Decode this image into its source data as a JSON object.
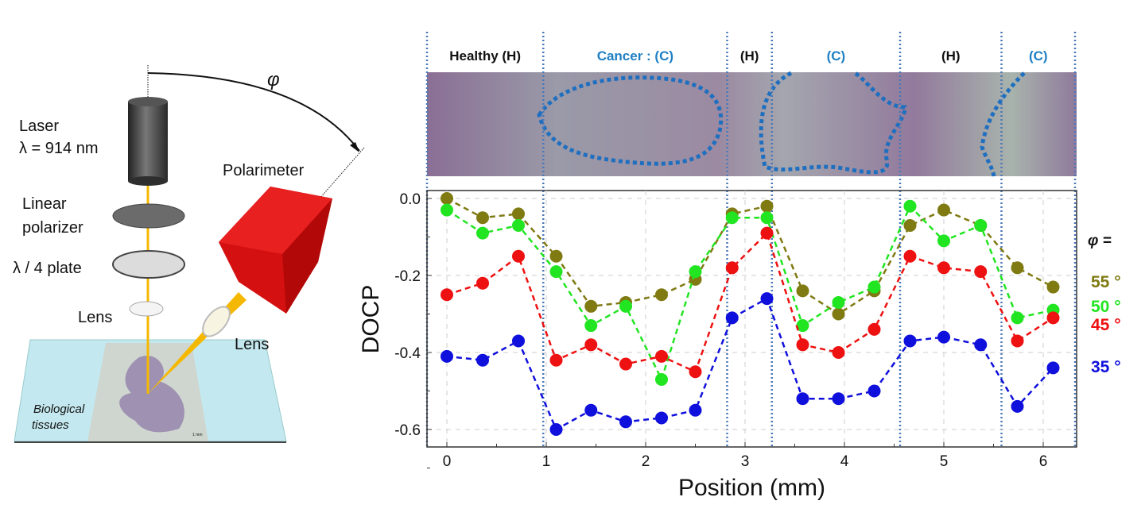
{
  "diagram": {
    "laser_label": "Laser",
    "wavelength_label": "λ = 914 nm",
    "polarizer_label_1": "Linear",
    "polarizer_label_2": "polarizer",
    "plate_label": "λ / 4 plate",
    "lens_label_1": "Lens",
    "lens_label_2": "Lens",
    "polarimeter_label": "Polarimeter",
    "angle_label": "φ",
    "tissue_label_1": "Biological",
    "tissue_label_2": "tissues",
    "scale_label": "1 mm",
    "colors": {
      "laser_body": "#3a3a3a",
      "beam": "#f5b800",
      "polarimeter": "#d81010",
      "slide": "#bfe6ee"
    }
  },
  "regions": [
    {
      "label": "Healthy (H)",
      "type": "healthy",
      "from_mm": -0.2,
      "to_mm": 0.97
    },
    {
      "label": "Cancer : (C)",
      "type": "cancer",
      "from_mm": 0.97,
      "to_mm": 2.82
    },
    {
      "label": "(H)",
      "type": "healthy",
      "from_mm": 2.82,
      "to_mm": 3.27
    },
    {
      "label": "(C)",
      "type": "cancer",
      "from_mm": 3.27,
      "to_mm": 4.56
    },
    {
      "label": "(H)",
      "type": "healthy",
      "from_mm": 4.56,
      "to_mm": 5.58
    },
    {
      "label": "(C)",
      "type": "cancer",
      "from_mm": 5.58,
      "to_mm": 6.33
    }
  ],
  "region_colors": {
    "healthy": "#111111",
    "cancer": "#1f7fc4",
    "divider": "#4a78b8"
  },
  "chart_data": {
    "type": "line",
    "xlabel": "Position (mm)",
    "ylabel": "DOCP",
    "xlim": [
      -0.2,
      6.33
    ],
    "ylim": [
      -0.65,
      0.02
    ],
    "xticks": [
      0,
      1,
      2,
      3,
      4,
      5,
      6
    ],
    "yticks": [
      0.0,
      -0.2,
      -0.4,
      -0.6
    ],
    "ytick_labels": [
      "0.0",
      "-0.2",
      "-0.4",
      "-0.6"
    ],
    "grid": true,
    "legend_title": "φ =",
    "legend_position": "right",
    "x": [
      0,
      0.36,
      0.72,
      1.1,
      1.45,
      1.8,
      2.16,
      2.5,
      2.87,
      3.22,
      3.58,
      3.94,
      4.3,
      4.66,
      5.0,
      5.37,
      5.74,
      6.1
    ],
    "series": [
      {
        "name": "55 °",
        "color": "#7f7a12",
        "values": [
          0.0,
          -0.05,
          -0.04,
          -0.15,
          -0.28,
          -0.27,
          -0.25,
          -0.21,
          -0.04,
          -0.02,
          -0.24,
          -0.3,
          -0.24,
          -0.07,
          -0.03,
          -0.07,
          -0.18,
          -0.23
        ]
      },
      {
        "name": "50 °",
        "color": "#22e522",
        "values": [
          -0.03,
          -0.09,
          -0.07,
          -0.19,
          -0.33,
          -0.28,
          -0.47,
          -0.19,
          -0.05,
          -0.05,
          -0.33,
          -0.27,
          -0.23,
          -0.02,
          -0.11,
          -0.07,
          -0.31,
          -0.29
        ]
      },
      {
        "name": "45 °",
        "color": "#ee1111",
        "values": [
          -0.25,
          -0.22,
          -0.15,
          -0.42,
          -0.38,
          -0.43,
          -0.41,
          -0.45,
          -0.18,
          -0.09,
          -0.38,
          -0.4,
          -0.34,
          -0.15,
          -0.18,
          -0.19,
          -0.37,
          -0.31
        ]
      },
      {
        "name": "35 °",
        "color": "#1010dd",
        "values": [
          -0.41,
          -0.42,
          -0.37,
          -0.6,
          -0.55,
          -0.58,
          -0.57,
          -0.55,
          -0.31,
          -0.26,
          -0.52,
          -0.52,
          -0.5,
          -0.37,
          -0.36,
          -0.38,
          -0.54,
          -0.44
        ]
      }
    ]
  }
}
